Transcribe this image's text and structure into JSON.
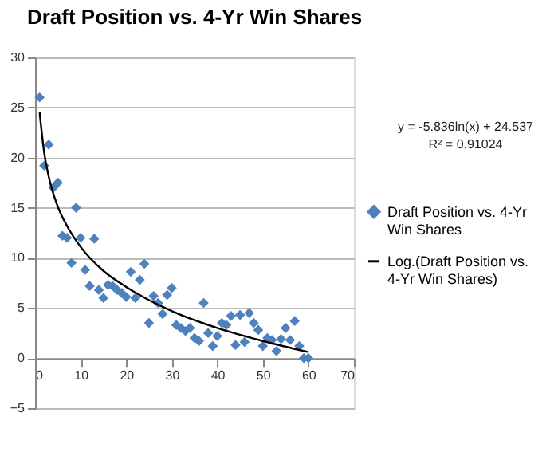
{
  "chart_data": {
    "type": "scatter",
    "title": "Draft Position vs. 4-Yr Win Shares",
    "annotations": [
      "y = -5.836ln(x) + 24.537",
      "R² = 0.91024"
    ],
    "xlim": [
      0,
      70
    ],
    "xticks": [
      0,
      10,
      20,
      30,
      40,
      50,
      60,
      70
    ],
    "ylim": [
      -5,
      30
    ],
    "yticks": [
      -5,
      0,
      5,
      10,
      15,
      20,
      25,
      30
    ],
    "grid": "y",
    "legend": "right",
    "marker": "diamond",
    "series": [
      {
        "name": "Draft Position vs. 4-Yr Win Shares",
        "color": "#4f81bd",
        "x": [
          1,
          2,
          3,
          4,
          5,
          6,
          7,
          8,
          9,
          10,
          11,
          12,
          13,
          14,
          15,
          16,
          17,
          18,
          19,
          20,
          21,
          22,
          23,
          24,
          25,
          26,
          27,
          28,
          29,
          30,
          31,
          32,
          33,
          34,
          35,
          36,
          37,
          38,
          39,
          40,
          41,
          42,
          43,
          44,
          45,
          46,
          47,
          48,
          49,
          50,
          51,
          52,
          53,
          54,
          55,
          56,
          57,
          58,
          59,
          60
        ],
        "values": [
          26,
          19.2,
          21.3,
          17,
          17.5,
          12.2,
          12,
          9.5,
          15,
          12,
          8.8,
          7.2,
          11.9,
          6.8,
          6,
          7.3,
          7.2,
          6.8,
          6.5,
          6.1,
          8.6,
          6,
          7.8,
          9.4,
          3.5,
          6.2,
          5.5,
          4.4,
          6.3,
          7,
          3.3,
          3,
          2.7,
          3,
          2,
          1.7,
          5.5,
          2.5,
          1.2,
          2.2,
          3.5,
          3.3,
          4.2,
          1.3,
          4.3,
          1.6,
          4.5,
          3.5,
          2.8,
          1.2,
          2,
          1.8,
          0.7,
          1.9,
          3,
          1.8,
          3.7,
          1.2,
          0,
          0
        ]
      },
      {
        "name": "Log.(Draft Position vs. 4-Yr Win Shares)",
        "type": "line",
        "color": "#000000",
        "marker": "none",
        "line_style": "solid",
        "x": [
          1,
          2,
          3,
          5,
          7,
          10,
          15,
          20,
          30,
          40,
          50,
          60
        ],
        "values": [
          24.5,
          20.5,
          18.1,
          15.1,
          13.2,
          11.1,
          8.7,
          7.1,
          4.7,
          3,
          1.7,
          0.6
        ]
      }
    ]
  }
}
